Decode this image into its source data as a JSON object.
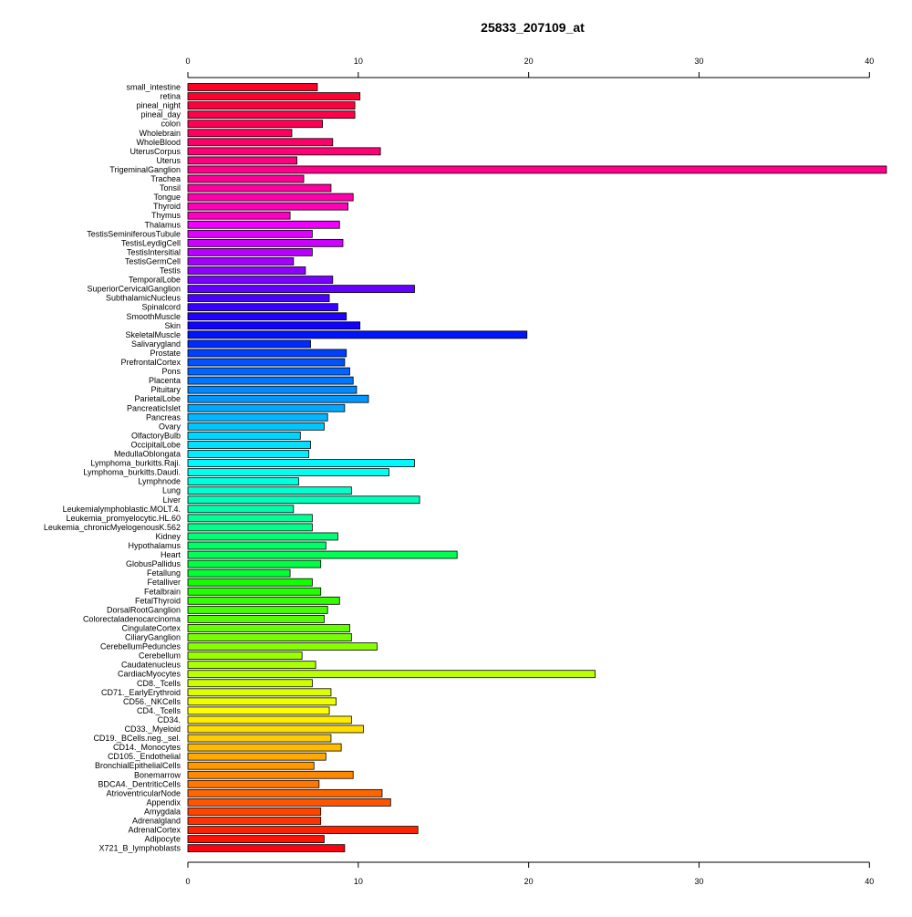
{
  "chart_data": {
    "type": "bar",
    "orientation": "horizontal",
    "title": "25833_207109_at",
    "xlabel": "",
    "ylabel": "",
    "xlim": [
      0,
      41
    ],
    "xticks": [
      0,
      10,
      20,
      30,
      40
    ],
    "tick_axes": [
      "top",
      "bottom"
    ],
    "grid": false,
    "legend": "none",
    "categories": [
      "small_intestine",
      "retina",
      "pineal_night",
      "pineal_day",
      "colon",
      "Wholebrain",
      "WholeBlood",
      "UterusCorpus",
      "Uterus",
      "TrigeminalGanglion",
      "Trachea",
      "Tonsil",
      "Tongue",
      "Thyroid",
      "Thymus",
      "Thalamus",
      "TestisSeminiferousTubule",
      "TestisLeydigCell",
      "TestisIntersitial",
      "TestisGermCell",
      "Testis",
      "TemporalLobe",
      "SuperiorCervicalGanglion",
      "SubthalamicNucleus",
      "Spinalcord",
      "SmoothMuscle",
      "Skin",
      "SkeletalMuscle",
      "Salivarygland",
      "Prostate",
      "PrefrontalCortex",
      "Pons",
      "Placenta",
      "Pituitary",
      "ParietalLobe",
      "PancreaticIslet",
      "Pancreas",
      "Ovary",
      "OlfactoryBulb",
      "OccipitalLobe",
      "MedullaOblongata",
      "Lymphoma_burkitts.Raji.",
      "Lymphoma_burkitts.Daudi.",
      "Lymphnode",
      "Lung",
      "Liver",
      "Leukemialymphoblastic.MOLT.4.",
      "Leukemia_promyelocytic.HL.60",
      "Leukemia_chronicMyelogenousK.562",
      "Kidney",
      "Hypothalamus",
      "Heart",
      "GlobusPallidus",
      "Fetallung",
      "Fetalliver",
      "Fetalbrain",
      "FetalThyroid",
      "DorsalRootGanglion",
      "Colorectaladenocarcinoma",
      "CingulateCortex",
      "CiliaryGanglion",
      "CerebellumPeduncles",
      "Cerebellum",
      "Caudatenucleus",
      "CardiacMyocytes",
      "CD8._Tcells",
      "CD71._EarlyErythroid",
      "CD56._NKCells",
      "CD4._Tcells",
      "CD34.",
      "CD33._Myeloid",
      "CD19._BCells.neg._sel.",
      "CD14._Monocytes",
      "CD105._Endothelial",
      "BronchialEpithelialCells",
      "Bonemarrow",
      "BDCA4._DentriticCells",
      "AtrioventricularNode",
      "Appendix",
      "Amygdala",
      "Adrenalgland",
      "AdrenalCortex",
      "Adipocyte",
      "X721_B_lymphoblasts"
    ],
    "values": [
      7.6,
      10.1,
      9.8,
      9.8,
      7.9,
      6.1,
      8.5,
      11.3,
      6.4,
      41.0,
      6.8,
      8.4,
      9.7,
      9.4,
      6.0,
      8.9,
      7.3,
      9.1,
      7.3,
      6.2,
      6.9,
      8.5,
      13.3,
      8.3,
      8.8,
      9.3,
      10.1,
      19.9,
      7.2,
      9.3,
      9.2,
      9.5,
      9.7,
      9.9,
      10.6,
      9.2,
      8.2,
      8.0,
      6.6,
      7.2,
      7.1,
      13.3,
      11.8,
      6.5,
      9.6,
      13.6,
      6.2,
      7.3,
      7.3,
      8.8,
      8.1,
      15.8,
      7.8,
      6.0,
      7.3,
      7.8,
      8.9,
      8.2,
      8.0,
      9.5,
      9.6,
      11.1,
      6.7,
      7.5,
      23.9,
      7.3,
      8.4,
      8.7,
      8.3,
      9.6,
      10.3,
      8.4,
      9.0,
      8.1,
      7.4,
      9.7,
      7.7,
      11.4,
      11.9,
      7.8,
      7.8,
      13.5,
      8.0,
      9.2
    ],
    "colors": [
      "#ff0028",
      "#ff0033",
      "#ff003e",
      "#ff0049",
      "#ff0054",
      "#ff005f",
      "#ff006a",
      "#ff0075",
      "#ff0080",
      "#ff008b",
      "#ff0096",
      "#ff00a1",
      "#ff00ac",
      "#ff00b7",
      "#ff00c2",
      "#f200ff",
      "#e000ff",
      "#cc00ff",
      "#b800ff",
      "#a400ff",
      "#9000ff",
      "#7a00ff",
      "#6400ff",
      "#4e00ff",
      "#3800ff",
      "#2200ff",
      "#1200ff",
      "#0014ff",
      "#002aff",
      "#0040ff",
      "#0052ff",
      "#0064ff",
      "#0076ff",
      "#0088ff",
      "#0098ff",
      "#00a8ff",
      "#00b8ff",
      "#00c6ff",
      "#00d4ff",
      "#00e0ff",
      "#00ecff",
      "#00f8ff",
      "#00ffee",
      "#00ffdd",
      "#00ffcc",
      "#00ffbb",
      "#00ffaa",
      "#00ff99",
      "#00ff88",
      "#00ff77",
      "#00ff66",
      "#00ff55",
      "#00ff44",
      "#00ff33",
      "#11ff00",
      "#22ff00",
      "#33ff00",
      "#44ff00",
      "#55ff00",
      "#66ff00",
      "#77ff00",
      "#88ff00",
      "#99ff00",
      "#aaff00",
      "#bbff00",
      "#ccff00",
      "#ddff00",
      "#eeff00",
      "#ffff00",
      "#ffee00",
      "#ffdd00",
      "#ffcc00",
      "#ffbb00",
      "#ffaa00",
      "#ff9900",
      "#ff8800",
      "#ff7700",
      "#ff6600",
      "#ff5500",
      "#ff4400",
      "#ff3300",
      "#ff2200",
      "#ff1100",
      "#ff0010"
    ]
  }
}
